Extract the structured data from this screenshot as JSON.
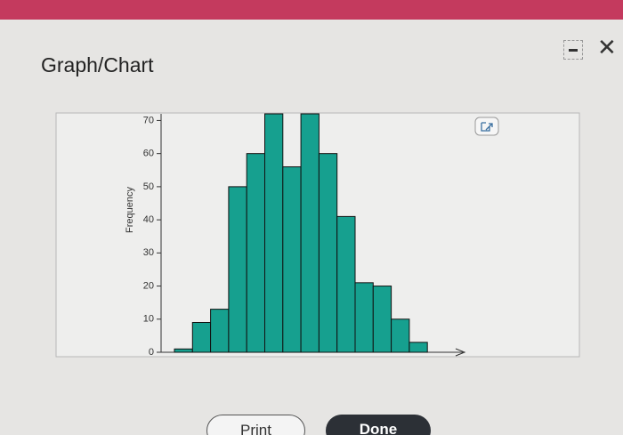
{
  "header": {
    "title": "Graph/Chart"
  },
  "chart_data": {
    "type": "bar",
    "y_label": "Frequency",
    "categories": [
      null,
      null,
      null,
      null,
      null,
      null,
      null,
      null,
      null,
      null,
      null,
      null,
      null,
      null
    ],
    "values": [
      1,
      9,
      13,
      50,
      60,
      72,
      56,
      72,
      60,
      41,
      21,
      20,
      10,
      3
    ],
    "color": "#16a08f",
    "ylim": [
      0,
      72
    ],
    "yticks": [
      0,
      10,
      20,
      30,
      40,
      50,
      60,
      70
    ]
  },
  "buttons": {
    "print": "Print",
    "done": "Done"
  }
}
